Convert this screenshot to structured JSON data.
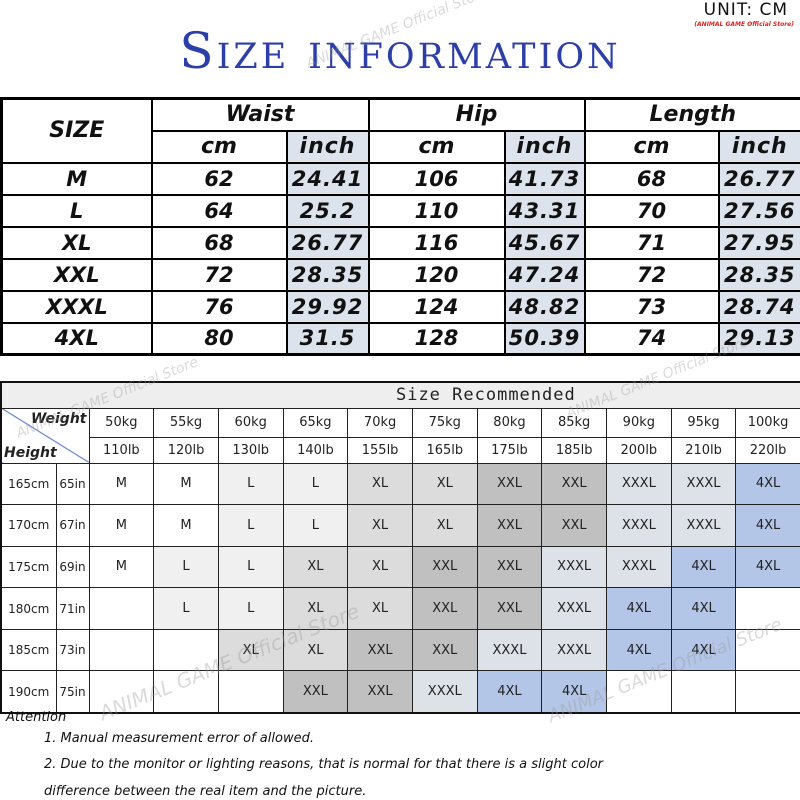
{
  "header": {
    "title": "Size information",
    "unit": "UNIT: CM",
    "store": "(ANIMAL GAME Official Store)"
  },
  "measure_table": {
    "size_label": "SIZE",
    "groups": [
      "Waist",
      "Hip",
      "Length"
    ],
    "subheaders": [
      "cm",
      "inch",
      "cm",
      "inch",
      "cm",
      "inch"
    ],
    "rows": [
      [
        "M",
        "62",
        "24.41",
        "106",
        "41.73",
        "68",
        "26.77"
      ],
      [
        "L",
        "64",
        "25.2",
        "110",
        "43.31",
        "70",
        "27.56"
      ],
      [
        "XL",
        "68",
        "26.77",
        "116",
        "45.67",
        "71",
        "27.95"
      ],
      [
        "XXL",
        "72",
        "28.35",
        "120",
        "47.24",
        "72",
        "28.35"
      ],
      [
        "XXXL",
        "76",
        "29.92",
        "124",
        "48.82",
        "73",
        "28.74"
      ],
      [
        "4XL",
        "80",
        "31.5",
        "128",
        "50.39",
        "74",
        "29.13"
      ]
    ],
    "inch_color": "#dde3ec"
  },
  "recommend_table": {
    "title": "Size Recommended",
    "weight_label": "Weight",
    "height_label": "Height",
    "kg": [
      "50kg",
      "55kg",
      "60kg",
      "65kg",
      "70kg",
      "75kg",
      "80kg",
      "85kg",
      "90kg",
      "95kg",
      "100kg"
    ],
    "lb": [
      "110lb",
      "120lb",
      "130lb",
      "140lb",
      "155lb",
      "165lb",
      "175lb",
      "185lb",
      "200lb",
      "210lb",
      "220lb"
    ],
    "rows": [
      {
        "cm": "165cm",
        "in": "65in",
        "sizes": [
          "M",
          "M",
          "L",
          "L",
          "XL",
          "XL",
          "XXL",
          "XXL",
          "XXXL",
          "XXXL",
          "4XL"
        ]
      },
      {
        "cm": "170cm",
        "in": "67in",
        "sizes": [
          "M",
          "M",
          "L",
          "L",
          "XL",
          "XL",
          "XXL",
          "XXL",
          "XXXL",
          "XXXL",
          "4XL"
        ]
      },
      {
        "cm": "175cm",
        "in": "69in",
        "sizes": [
          "M",
          "L",
          "L",
          "XL",
          "XL",
          "XXL",
          "XXL",
          "XXXL",
          "XXXL",
          "4XL",
          "4XL"
        ]
      },
      {
        "cm": "180cm",
        "in": "71in",
        "sizes": [
          "",
          "L",
          "L",
          "XL",
          "XL",
          "XXL",
          "XXL",
          "XXXL",
          "4XL",
          "4XL",
          ""
        ]
      },
      {
        "cm": "185cm",
        "in": "73in",
        "sizes": [
          "",
          "",
          "XL",
          "XL",
          "XXL",
          "XXL",
          "XXXL",
          "XXXL",
          "4XL",
          "4XL",
          ""
        ]
      },
      {
        "cm": "190cm",
        "in": "75in",
        "sizes": [
          "",
          "",
          "",
          "XXL",
          "XXL",
          "XXXL",
          "4XL",
          "4XL",
          "",
          "",
          ""
        ]
      }
    ],
    "size_colors": {
      "M": "#ffffff",
      "L": "#f0f0f0",
      "XL": "#dcdcdc",
      "XXL": "#c0c0c0",
      "XXXL": "#dde1e8",
      "4XL": "#b4c6e7"
    }
  },
  "notes": {
    "heading": "Attention",
    "items": [
      "1. Manual measurement error of allowed.",
      "2.  Due to the monitor or lighting reasons, that is normal for that there is a slight color",
      "difference between the real item and the picture."
    ]
  },
  "watermark": "ANIMAL GAME Official Store"
}
